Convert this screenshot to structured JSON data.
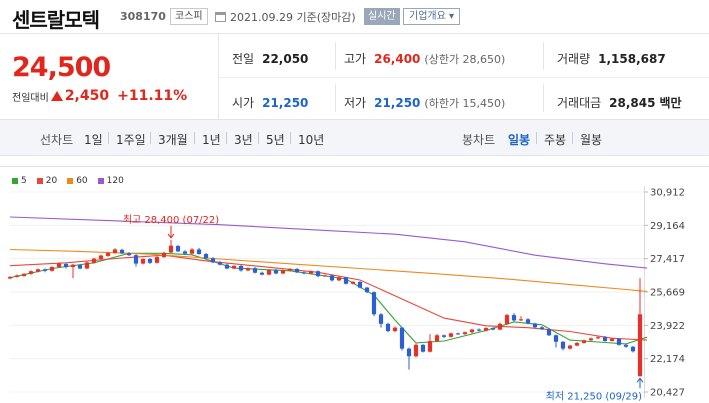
{
  "header": {
    "stock_name": "센트랄모텍",
    "stock_code": "308170",
    "market": "코스피",
    "date_text": "2021.09.29 기준(장마감)",
    "realtime_label": "실시간",
    "company_info_label": "기업개요 ▾"
  },
  "summary": {
    "price": "24,500",
    "change_label": "전일대비",
    "change_amount": "2,450",
    "change_percent": "+11.11%",
    "prev_close_label": "전일",
    "prev_close": "22,050",
    "high_label": "고가",
    "high": "26,400",
    "upper_limit": "(상한가 28,650)",
    "volume_label": "거래량",
    "volume": "1,158,687",
    "open_label": "시가",
    "open": "21,250",
    "low_label": "저가",
    "low": "21,250",
    "lower_limit": "(하한가 15,450)",
    "amount_label": "거래대금",
    "amount": "28,845",
    "amount_unit": "백만"
  },
  "periods": {
    "line_chart": "선차트",
    "items": [
      "1일",
      "1주일",
      "3개월",
      "1년",
      "3년",
      "5년",
      "10년"
    ],
    "candle_chart": "봉차트",
    "candle_items": [
      "일봉",
      "주봉",
      "월봉"
    ],
    "selected_candle": "일봉"
  },
  "chart_data": {
    "type": "candlestick",
    "legend": [
      {
        "name": "5",
        "color": "#33a534"
      },
      {
        "name": "20",
        "color": "#e8473c"
      },
      {
        "name": "60",
        "color": "#f0891b"
      },
      {
        "name": "120",
        "color": "#9b59c9"
      }
    ],
    "y_ticks": [
      "30,912",
      "29,164",
      "27,417",
      "25,669",
      "23,922",
      "22,174",
      "20,427"
    ],
    "y_min": 20427,
    "y_max": 30912,
    "annotations": {
      "high": "최고 28,400 (07/22)",
      "low": "최저 21,250 (09/29)"
    },
    "colors": {
      "up": "#e8302a",
      "down": "#2c5fd3"
    },
    "candles": [
      [
        26380,
        26460,
        26500,
        26340
      ],
      [
        26460,
        26540,
        26580,
        26420
      ],
      [
        26500,
        26620,
        26660,
        26480
      ],
      [
        26620,
        26760,
        26800,
        26580
      ],
      [
        26740,
        26860,
        26900,
        26700
      ],
      [
        26860,
        26780,
        26900,
        26700
      ],
      [
        26780,
        26980,
        27020,
        26740
      ],
      [
        26980,
        27160,
        27220,
        26940
      ],
      [
        27140,
        26980,
        27200,
        26900
      ],
      [
        26980,
        27100,
        27140,
        26400
      ],
      [
        27080,
        26900,
        27120,
        26860
      ],
      [
        26900,
        27220,
        27260,
        26860
      ],
      [
        27200,
        27420,
        27460,
        27160
      ],
      [
        27400,
        27580,
        27620,
        27360
      ],
      [
        27560,
        27720,
        27760,
        27520
      ],
      [
        27720,
        27900,
        27960,
        27680
      ],
      [
        27880,
        27700,
        27940,
        27660
      ],
      [
        27700,
        27600,
        27760,
        27560
      ],
      [
        27600,
        27160,
        27640,
        27000
      ],
      [
        27160,
        27400,
        27440,
        27120
      ],
      [
        27400,
        27200,
        27460,
        27140
      ],
      [
        27200,
        27500,
        27560,
        27160
      ],
      [
        27500,
        27720,
        27780,
        27460
      ],
      [
        27740,
        28100,
        28400,
        27700
      ],
      [
        28080,
        27800,
        28140,
        27760
      ],
      [
        27800,
        27680,
        27860,
        27620
      ],
      [
        27680,
        27900,
        27960,
        27640
      ],
      [
        27900,
        27660,
        27980,
        27620
      ],
      [
        27660,
        27440,
        27720,
        27400
      ],
      [
        27440,
        27220,
        27500,
        27180
      ],
      [
        27220,
        27100,
        27280,
        27060
      ],
      [
        27100,
        26900,
        27160,
        26860
      ],
      [
        26900,
        27040,
        27080,
        26860
      ],
      [
        27040,
        26800,
        27080,
        26740
      ],
      [
        26800,
        26920,
        26960,
        26760
      ],
      [
        26920,
        26680,
        26980,
        26640
      ],
      [
        26680,
        26580,
        26740,
        26540
      ],
      [
        26580,
        26820,
        26860,
        26540
      ],
      [
        26820,
        26640,
        26880,
        26600
      ],
      [
        26640,
        26800,
        26840,
        26600
      ],
      [
        26800,
        26880,
        26920,
        26760
      ],
      [
        26880,
        26700,
        26920,
        26660
      ],
      [
        26700,
        26640,
        26760,
        26600
      ],
      [
        26640,
        26760,
        26800,
        26600
      ],
      [
        26760,
        26500,
        26800,
        26440
      ],
      [
        26500,
        26540,
        26580,
        26460
      ],
      [
        26540,
        26280,
        26580,
        26220
      ],
      [
        26280,
        26440,
        26480,
        26240
      ],
      [
        26440,
        26100,
        26460,
        26060
      ],
      [
        26100,
        26200,
        26240,
        26060
      ],
      [
        26200,
        25900,
        26240,
        25860
      ],
      [
        25900,
        25660,
        25940,
        25620
      ],
      [
        25660,
        24500,
        25700,
        24400
      ],
      [
        24500,
        24000,
        24560,
        23800
      ],
      [
        24000,
        23620,
        24060,
        23560
      ],
      [
        23620,
        23800,
        23860,
        23560
      ],
      [
        23800,
        22700,
        23840,
        22600
      ],
      [
        22700,
        22300,
        22760,
        21600
      ],
      [
        22300,
        22900,
        22960,
        22240
      ],
      [
        22900,
        22540,
        22940,
        22500
      ],
      [
        22540,
        23100,
        23460,
        22500
      ],
      [
        23100,
        23400,
        23460,
        23040
      ],
      [
        23400,
        23320,
        23440,
        23260
      ],
      [
        23320,
        23500,
        23540,
        23280
      ],
      [
        23500,
        23460,
        23540,
        23420
      ],
      [
        23460,
        23560,
        23600,
        23420
      ],
      [
        23560,
        23700,
        23740,
        23500
      ],
      [
        23700,
        23640,
        23760,
        23600
      ],
      [
        23640,
        23780,
        23820,
        23600
      ],
      [
        23780,
        23700,
        23820,
        23660
      ],
      [
        23700,
        24000,
        24060,
        23660
      ],
      [
        24000,
        24460,
        24520,
        23940
      ],
      [
        24460,
        24180,
        24560,
        24120
      ],
      [
        24180,
        24240,
        24400,
        24140
      ],
      [
        24240,
        24020,
        24300,
        23980
      ],
      [
        24020,
        23820,
        24060,
        23760
      ],
      [
        23820,
        23720,
        23880,
        23680
      ],
      [
        23720,
        23400,
        23760,
        23360
      ],
      [
        23400,
        23060,
        23440,
        22760
      ],
      [
        23060,
        22700,
        23100,
        22600
      ],
      [
        22700,
        22860,
        22900,
        22660
      ],
      [
        22860,
        23000,
        23040,
        22820
      ],
      [
        23000,
        23140,
        23180,
        22960
      ],
      [
        23140,
        23240,
        23280,
        23100
      ],
      [
        23240,
        23300,
        23340,
        23200
      ],
      [
        23300,
        23100,
        23360,
        23060
      ],
      [
        23100,
        23220,
        23260,
        23080
      ],
      [
        23220,
        22900,
        23260,
        22860
      ],
      [
        22900,
        22800,
        22940,
        22740
      ],
      [
        22800,
        22560,
        22840,
        22500
      ],
      [
        21250,
        24500,
        26400,
        21250
      ]
    ],
    "ma": {
      "5": [
        [
          0,
          26420
        ],
        [
          6,
          26900
        ],
        [
          12,
          27200
        ],
        [
          17,
          27700
        ],
        [
          22,
          27700
        ],
        [
          26,
          27620
        ],
        [
          32,
          26920
        ],
        [
          40,
          26780
        ],
        [
          48,
          26350
        ],
        [
          52,
          25500
        ],
        [
          55,
          24200
        ],
        [
          58,
          23000
        ],
        [
          62,
          23100
        ],
        [
          68,
          23650
        ],
        [
          72,
          24100
        ],
        [
          76,
          23950
        ],
        [
          80,
          23150
        ],
        [
          84,
          23050
        ],
        [
          88,
          22950
        ],
        [
          91,
          23300
        ]
      ],
      "20": [
        [
          0,
          27050
        ],
        [
          8,
          27200
        ],
        [
          16,
          27450
        ],
        [
          22,
          27600
        ],
        [
          28,
          27300
        ],
        [
          36,
          27000
        ],
        [
          44,
          26700
        ],
        [
          50,
          26300
        ],
        [
          56,
          25300
        ],
        [
          62,
          24300
        ],
        [
          68,
          23900
        ],
        [
          74,
          23800
        ],
        [
          80,
          23600
        ],
        [
          86,
          23250
        ],
        [
          91,
          23150
        ]
      ],
      "60": [
        [
          0,
          27900
        ],
        [
          10,
          27800
        ],
        [
          20,
          27650
        ],
        [
          30,
          27400
        ],
        [
          40,
          27150
        ],
        [
          50,
          26900
        ],
        [
          60,
          26650
        ],
        [
          70,
          26380
        ],
        [
          80,
          26060
        ],
        [
          88,
          25800
        ],
        [
          91,
          25700
        ]
      ],
      "120": [
        [
          0,
          29600
        ],
        [
          15,
          29400
        ],
        [
          30,
          29200
        ],
        [
          45,
          28900
        ],
        [
          55,
          28700
        ],
        [
          65,
          28300
        ],
        [
          75,
          27600
        ],
        [
          85,
          27150
        ],
        [
          91,
          26920
        ]
      ]
    }
  }
}
